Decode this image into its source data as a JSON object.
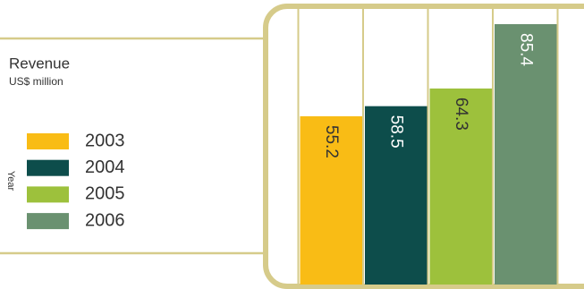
{
  "chart_data": {
    "type": "bar",
    "title": "Revenue",
    "subtitle": "US$ million",
    "legend_title": "Year",
    "categories": [
      "2003",
      "2004",
      "2005",
      "2006"
    ],
    "values": [
      55.2,
      58.5,
      64.3,
      85.4
    ],
    "colors": [
      "#f9bc15",
      "#0d4d4b",
      "#9dc13c",
      "#6a9170"
    ]
  }
}
